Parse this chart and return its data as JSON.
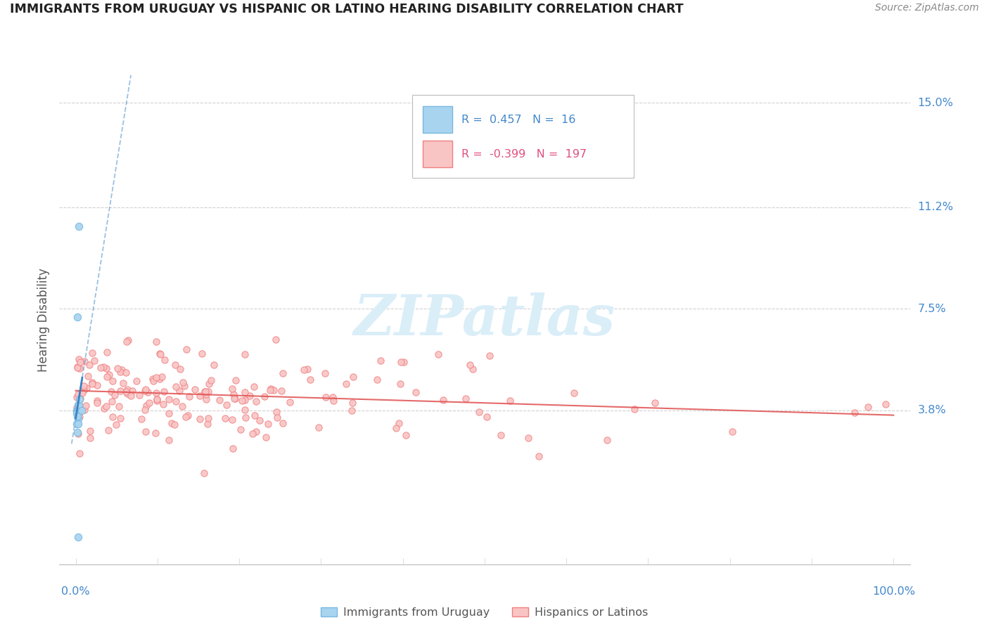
{
  "title": "IMMIGRANTS FROM URUGUAY VS HISPANIC OR LATINO HEARING DISABILITY CORRELATION CHART",
  "source": "Source: ZipAtlas.com",
  "ylabel": "Hearing Disability",
  "y_ticks": [
    0.038,
    0.075,
    0.112,
    0.15
  ],
  "y_tick_labels": [
    "3.8%",
    "7.5%",
    "11.2%",
    "15.0%"
  ],
  "xlim": [
    -0.02,
    1.02
  ],
  "ylim": [
    -0.018,
    0.16
  ],
  "legend_blue_r": "0.457",
  "legend_blue_n": "16",
  "legend_pink_r": "-0.399",
  "legend_pink_n": "197",
  "blue_marker_color": "#a8d4f0",
  "blue_edge_color": "#7ab8e0",
  "pink_marker_color": "#f9c4c4",
  "pink_edge_color": "#f08080",
  "blue_line_color": "#3b82c4",
  "pink_line_color": "#e05050",
  "grid_color": "#d0d0d0",
  "title_color": "#222222",
  "source_color": "#888888",
  "tick_label_color": "#4488cc",
  "watermark_color": "#daeef8"
}
